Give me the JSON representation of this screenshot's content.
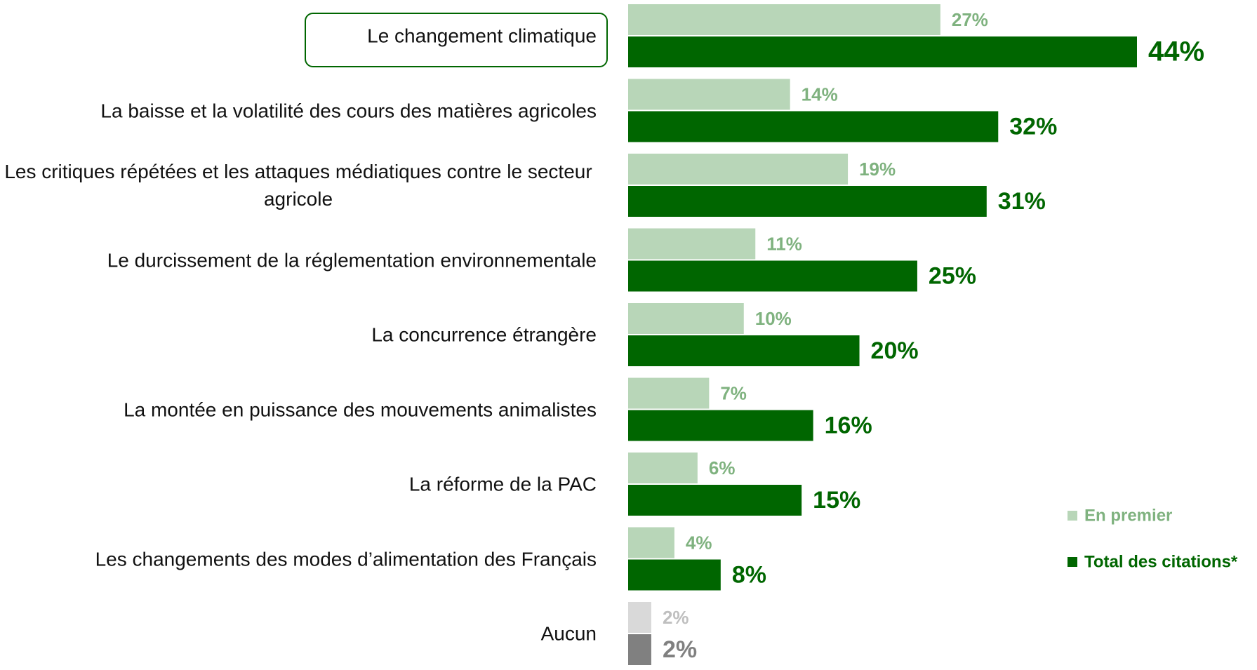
{
  "chart_data": {
    "type": "bar",
    "orientation": "horizontal",
    "categories": [
      "Le changement climatique",
      "La baisse et la volatilité des cours des matières agricoles",
      "Les critiques répétées et les attaques médiatiques contre le secteur agricole",
      "Le durcissement de la réglementation environnementale",
      "La concurrence étrangère",
      "La montée en puissance des mouvements animalistes",
      "La réforme de la PAC",
      "Les changements des modes d’alimentation des Français",
      "Aucun"
    ],
    "series": [
      {
        "name": "En premier",
        "color": "#b8d6b8",
        "colors": [
          "#b8d6b8",
          "#b8d6b8",
          "#b8d6b8",
          "#b8d6b8",
          "#b8d6b8",
          "#b8d6b8",
          "#b8d6b8",
          "#b8d6b8",
          "#d9d9d9"
        ],
        "label_colors": [
          "#7fb27f",
          "#7fb27f",
          "#7fb27f",
          "#7fb27f",
          "#7fb27f",
          "#7fb27f",
          "#7fb27f",
          "#7fb27f",
          "#bfbfbf"
        ],
        "values": [
          27,
          14,
          19,
          11,
          10,
          7,
          6,
          4,
          2
        ],
        "value_labels": [
          "27%",
          "14%",
          "19%",
          "11%",
          "10%",
          "7%",
          "6%",
          "4%",
          "2%"
        ]
      },
      {
        "name": "Total des citations*",
        "color": "#006600",
        "colors": [
          "#006600",
          "#006600",
          "#006600",
          "#006600",
          "#006600",
          "#006600",
          "#006600",
          "#006600",
          "#808080"
        ],
        "label_colors": [
          "#006600",
          "#006600",
          "#006600",
          "#006600",
          "#006600",
          "#006600",
          "#006600",
          "#006600",
          "#808080"
        ],
        "values": [
          44,
          32,
          31,
          25,
          20,
          16,
          15,
          8,
          2
        ],
        "value_labels": [
          "44%",
          "32%",
          "31%",
          "25%",
          "20%",
          "16%",
          "15%",
          "8%",
          "2%"
        ]
      }
    ],
    "legend": "lower right"
  }
}
